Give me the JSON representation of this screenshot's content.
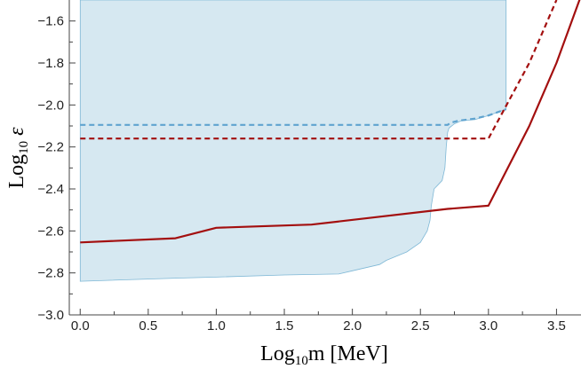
{
  "chart_data": {
    "type": "line",
    "title": "",
    "xlabel": {
      "main": "Log",
      "sub": "10",
      "rest": "m [MeV]"
    },
    "ylabel": {
      "main": "Log",
      "sub": "10",
      "rest": " ε"
    },
    "xlim": [
      -0.08,
      3.68
    ],
    "ylim": [
      -3.0,
      -1.5
    ],
    "xticks": [
      0.0,
      0.5,
      1.0,
      1.5,
      2.0,
      2.5,
      3.0,
      3.5
    ],
    "xtick_labels": [
      "0.0",
      "0.5",
      "1.0",
      "1.5",
      "2.0",
      "2.5",
      "3.0",
      "3.5"
    ],
    "yticks": [
      -3.0,
      -2.8,
      -2.6,
      -2.4,
      -2.2,
      -2.0,
      -1.8,
      -1.6
    ],
    "ytick_labels": [
      "−3.0",
      "−2.8",
      "−2.6",
      "−2.4",
      "−2.2",
      "−2.0",
      "−1.8",
      "−1.6"
    ],
    "grid": false,
    "legend": "none",
    "region": {
      "color": "#d6e8f1",
      "edge_color": "#7fb8d6",
      "boundary": [
        [
          0.0,
          -1.5
        ],
        [
          0.0,
          -2.84
        ],
        [
          0.7,
          -2.825
        ],
        [
          1.0,
          -2.82
        ],
        [
          1.5,
          -2.81
        ],
        [
          1.9,
          -2.805
        ],
        [
          2.0,
          -2.79
        ],
        [
          2.2,
          -2.76
        ],
        [
          2.25,
          -2.74
        ],
        [
          2.4,
          -2.7
        ],
        [
          2.5,
          -2.655
        ],
        [
          2.55,
          -2.6
        ],
        [
          2.57,
          -2.55
        ],
        [
          2.58,
          -2.48
        ],
        [
          2.6,
          -2.4
        ],
        [
          2.63,
          -2.38
        ],
        [
          2.66,
          -2.36
        ],
        [
          2.68,
          -2.3
        ],
        [
          2.69,
          -2.2
        ],
        [
          2.7,
          -2.13
        ],
        [
          2.71,
          -2.11
        ],
        [
          2.75,
          -2.09
        ],
        [
          2.8,
          -2.075
        ],
        [
          2.9,
          -2.07
        ],
        [
          3.0,
          -2.05
        ],
        [
          3.13,
          -2.02
        ],
        [
          3.13,
          -1.5
        ]
      ]
    },
    "series": [
      {
        "style": "dashed",
        "color": "#5fa3cf",
        "x": [
          0.0,
          2.7,
          2.72,
          2.78,
          2.9,
          3.0,
          3.13
        ],
        "y": [
          -2.095,
          -2.095,
          -2.085,
          -2.075,
          -2.065,
          -2.05,
          -2.02
        ]
      },
      {
        "style": "dashed",
        "color": "#a30f0f",
        "x": [
          0.0,
          3.0,
          3.3,
          3.5
        ],
        "y": [
          -2.16,
          -2.16,
          -1.8,
          -1.5
        ]
      },
      {
        "style": "solid",
        "color": "#a30f0f",
        "x": [
          0.0,
          0.7,
          1.0,
          1.7,
          2.7,
          3.0,
          3.3,
          3.5,
          3.68
        ],
        "y": [
          -2.655,
          -2.635,
          -2.585,
          -2.57,
          -2.495,
          -2.48,
          -2.1,
          -1.8,
          -1.48
        ]
      }
    ]
  }
}
